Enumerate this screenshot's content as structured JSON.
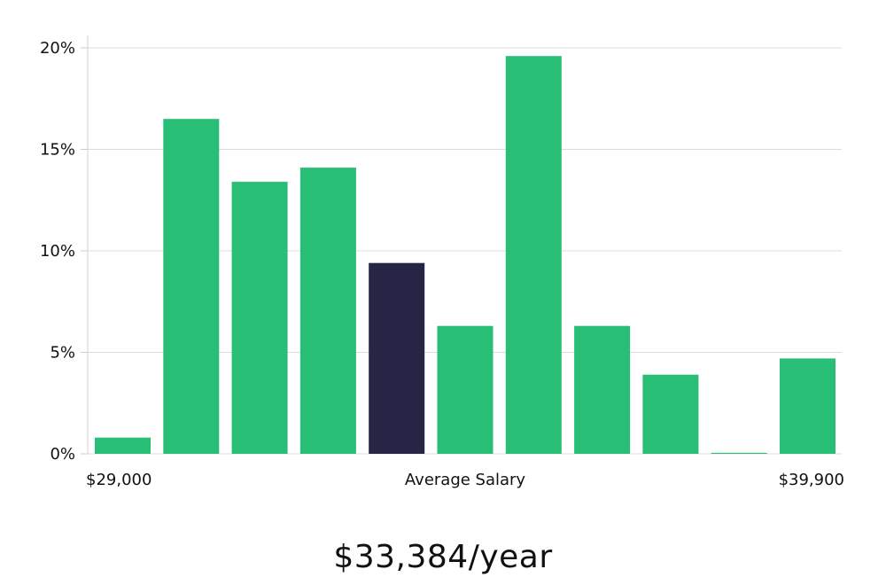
{
  "chart_data": {
    "type": "bar",
    "values": [
      0.8,
      16.5,
      13.4,
      14.1,
      9.4,
      6.3,
      19.6,
      6.3,
      3.9,
      0.05,
      4.7
    ],
    "highlight_index": 4,
    "ylim": [
      0,
      20
    ],
    "yticks": [
      "0%",
      "5%",
      "10%",
      "15%",
      "20%"
    ],
    "ytick_values": [
      0,
      5,
      10,
      15,
      20
    ],
    "x_left_label": "$29,000",
    "x_center_label": "Average Salary",
    "x_right_label": "$39,900",
    "grid": true,
    "bar_color": "#29be76",
    "highlight_color": "#272546"
  },
  "headline": "$33,384/year"
}
